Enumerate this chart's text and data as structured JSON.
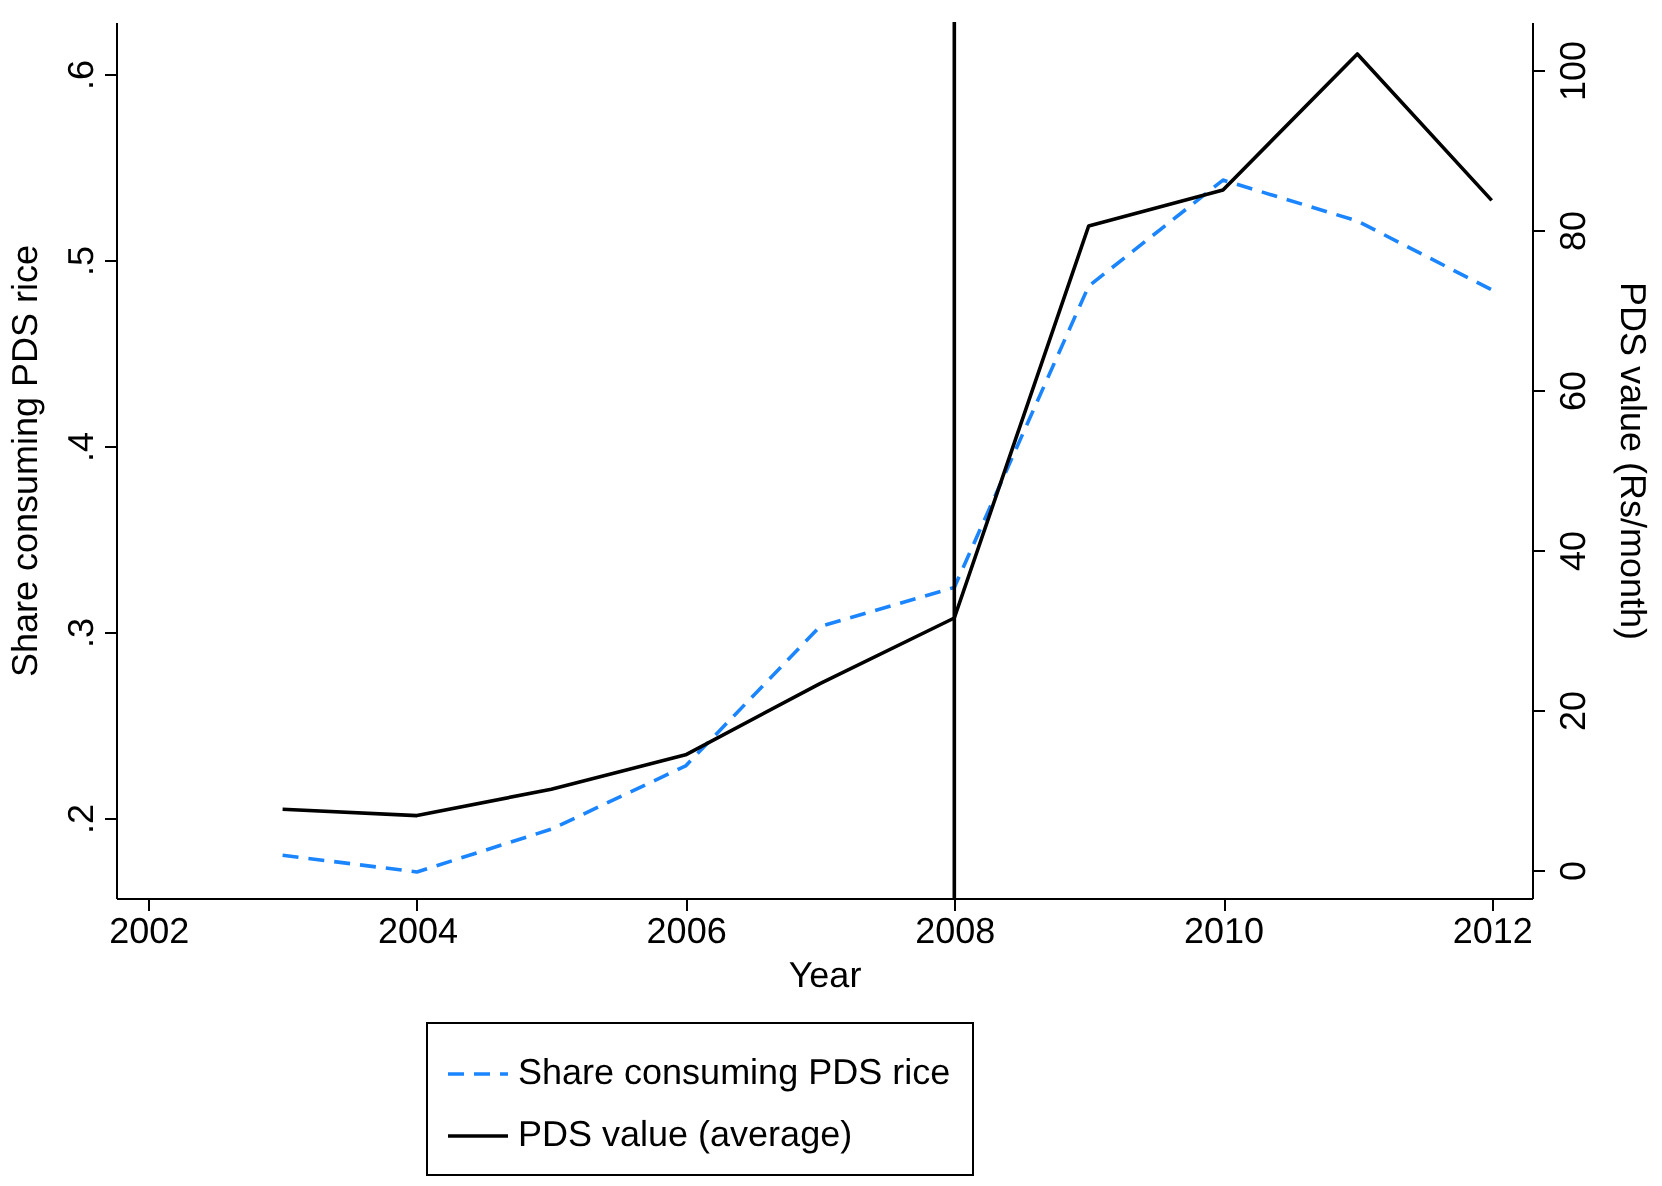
{
  "chart_data": {
    "type": "line",
    "xlabel": "Year",
    "ylabel": "Share consuming PDS rice",
    "y2label": "PDS value (Rs/month)",
    "x": [
      2003,
      2004,
      2005,
      2006,
      2007,
      2008,
      2009,
      2010,
      2011,
      2012
    ],
    "series": [
      {
        "name": "Share consuming PDS rice",
        "color": "#1a85ff",
        "line_style": "dashed",
        "values": [
          0.18,
          0.171,
          0.194,
          0.228,
          0.303,
          0.324,
          0.486,
          0.543,
          0.521,
          0.484
        ]
      },
      {
        "name": "PDS value (average)",
        "color": "#000000",
        "line_style": "solid",
        "axis": "y2",
        "values": [
          7.6,
          6.8,
          10.1,
          14.4,
          23.3,
          31.5,
          80.5,
          85,
          102,
          83.7
        ]
      }
    ],
    "xlim": [
      2001.76,
      2012.3
    ],
    "xticks": [
      2002,
      2004,
      2006,
      2008,
      2010,
      2012
    ],
    "ylim": [
      0.157,
      0.628
    ],
    "yticks": [
      {
        "value": 0.2,
        "label": ".2"
      },
      {
        "value": 0.3,
        "label": ".3"
      },
      {
        "value": 0.4,
        "label": ".4"
      },
      {
        "value": 0.5,
        "label": ".5"
      },
      {
        "value": 0.6,
        "label": ".6"
      }
    ],
    "y2lim": [
      -3.5,
      106
    ],
    "y2ticks": [
      0,
      20,
      40,
      60,
      80,
      100
    ],
    "ref_lines": [
      {
        "axis": "x",
        "value": 2008,
        "color": "#000000"
      }
    ],
    "grid": false,
    "legend": "bottom",
    "marker": "none"
  }
}
